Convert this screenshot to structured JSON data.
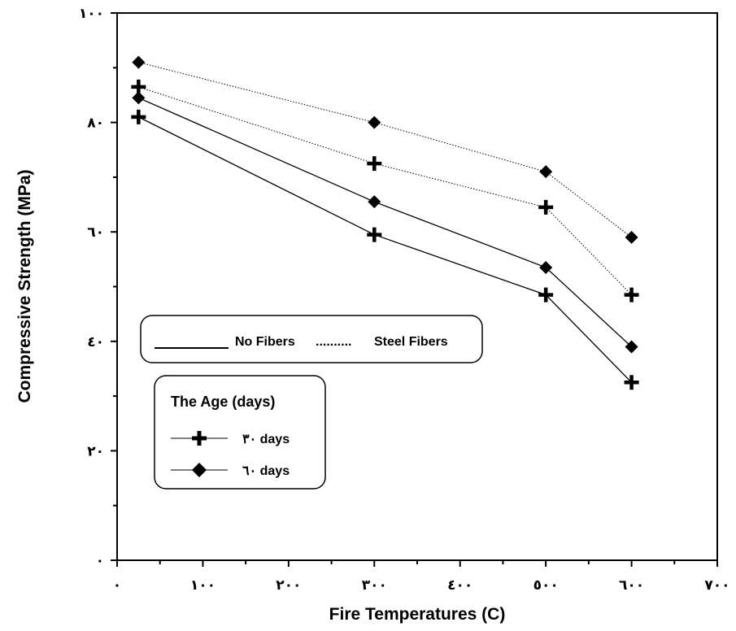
{
  "chart_data": {
    "type": "line",
    "xlabel": "Fire Temperatures (C)",
    "ylabel": "Compressive Strength (MPa)",
    "xlim": [
      0,
      700
    ],
    "ylim": [
      0,
      100
    ],
    "x_ticks": [
      0,
      100,
      200,
      300,
      400,
      500,
      600,
      700
    ],
    "x_tick_labels": [
      "٠",
      "١٠٠",
      "٢٠٠",
      "٣٠٠",
      "٤٠٠",
      "٥٠٠",
      "٦٠٠",
      "٧٠٠"
    ],
    "y_ticks": [
      0,
      20,
      40,
      60,
      80,
      100
    ],
    "y_tick_labels": [
      "٠",
      "٢٠",
      "٤٠",
      "٦٠",
      "٨٠",
      "١٠٠"
    ],
    "grid": false,
    "line_legend": {
      "solid_label": "No Fibers",
      "dotted_label": "Steel Fibers"
    },
    "marker_legend": {
      "title": "The Age (days)",
      "entries": [
        {
          "marker": "plus",
          "label": "٣٠ days"
        },
        {
          "marker": "diamond",
          "label": "٦٠ days"
        }
      ]
    },
    "series": [
      {
        "key": "nf30",
        "marker": "plus",
        "style": "solid",
        "x": [
          25,
          300,
          500,
          600
        ],
        "values": [
          81,
          59.5,
          48.5,
          32.5
        ]
      },
      {
        "key": "nf60",
        "marker": "diamond",
        "style": "solid",
        "x": [
          25,
          300,
          500,
          600
        ],
        "values": [
          84.5,
          65.5,
          53.5,
          39
        ]
      },
      {
        "key": "sf30",
        "marker": "plus",
        "style": "dotted",
        "x": [
          25,
          300,
          500,
          600
        ],
        "values": [
          86.5,
          72.5,
          64.5,
          48.5
        ]
      },
      {
        "key": "sf60",
        "marker": "diamond",
        "style": "dotted",
        "x": [
          25,
          300,
          500,
          600
        ],
        "values": [
          91,
          80,
          71,
          59
        ]
      }
    ]
  }
}
